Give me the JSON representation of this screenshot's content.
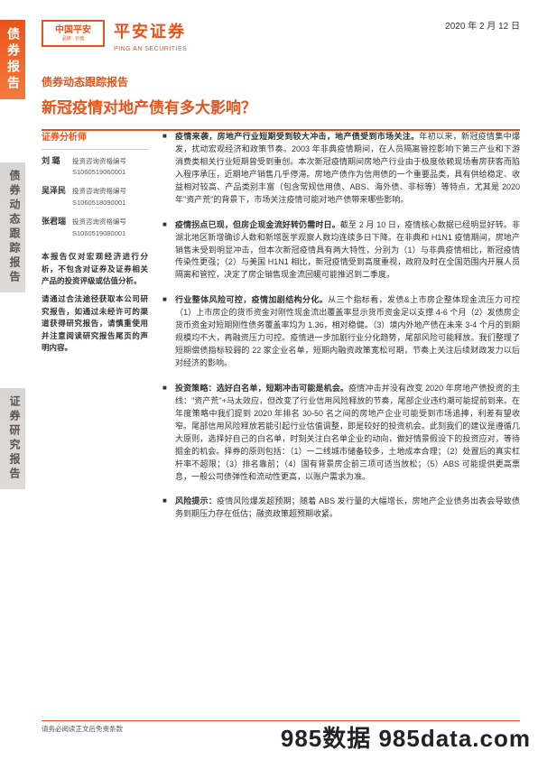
{
  "date": "2020 年 2 月 12 日",
  "header": {
    "logo_text": "中国平安",
    "logo_sub": "品牌 · 价值",
    "brand_cn": "平安证券",
    "brand_en": "PING AN SECURITIES"
  },
  "side": {
    "tab1": "债券报告",
    "tab2": "债券动态跟踪报告",
    "tab3": "证券研究报告"
  },
  "title": {
    "report_type": "债券动态跟踪报告",
    "main": "新冠疫情对地产债有多大影响？"
  },
  "analysts": {
    "heading": "证券分析师",
    "list": [
      {
        "name": "刘  璐",
        "label": "投资咨询资格编号",
        "code": "S1060519060001"
      },
      {
        "name": "吴泽民",
        "label": "投资咨询资格编号",
        "code": "S1060518090001"
      },
      {
        "name": "张君瑞",
        "label": "投资咨询资格编号",
        "code": "S1060519080001"
      }
    ],
    "note": "本报告仅对宏观经济进行分析，不包含对证券及证券相关产品的投资评级或估值分析。\n请通过合法途径获取本公司研究报告，如通过未经许可的渠道获得研究报告，请慎重使用并注意阅读研究报告尾页的声明内容。"
  },
  "bullets": [
    {
      "lead": "疫情来袭，房地产行业短期受到较大冲击，地产债受到市场关注。",
      "body": "年初以来，新冠疫情集中爆发，扰动宏观经济和政策节奏。2003 年非典疫情期间，在人员隔离管控影响下第三产业和下游消费类相关行业短期曾受到重创。本次新冠疫情期间房地产行业由于极度依赖现场看房获客而陷入程序承压，近期地产销售几乎停滞。房地产债作为信用债的一个重要品类，具有供给稳定、收益相对较高、产品类别丰富（包含常规信用债、ABS、海外债、非标等）等特点，尤其是 2020 年\"资产荒\"的背景下，市场关注疫情可能对地产债带来哪些影响。"
    },
    {
      "lead": "疫情拐点已现，但房企现金流好转仍需时日。",
      "body": "截至 2 月 10 日，疫情核心数据已经明显好转。非湖北地区新增确诊人数和新增医学观察人数均连续多日下降。在非典和 H1N1 疫情期间，房地产销售未受到明显冲击，但本次新冠疫情具有两大特性，分别为（1）与非典疫情相比，新冠疫情传染性更强；（2）与美国 H1N1 相比，新冠疫情受到高度重视，政府及时在全国范围内开展人员隔离和管控，决定了房企销售现金流回暖可能推迟到二季度。"
    },
    {
      "lead": "行业整体风险可控，疫情加剧结构分化。",
      "body": "从三个指标看，发债&上市房企整体现金流压力可控（1）上市房企的货币资金对刚性现金流出覆盖率显示货币资金足以支撑 4-6 个月（2）发债房企货币资金对短期刚性债务覆盖率均为 1.36，相对稳健。（3）境内外地产债在未来 3-4 个月的到期规模均不大，再融资压力可控。疫情进一步加剧行业分化趋势，尾部风险可能释放。我们整理了短期偿债指标较弱的 22 家企业名单，短期内融资政策宽松可期，节奏上关注后续财政发力以后对经济的影响。"
    },
    {
      "lead": "投资策略：选好白名单，短期冲击可能是机会。",
      "body": "疫情冲击并没有改变 2020 年房地产债投资的主线：\"资产荒\"+马太效应，但改变了行业信用风险释放的节奏，尾部企业违约潮可能提前到来。在年度策略中我们提到 2020 年排名 30-50 名之间的房地产企业可能受到市场追捧，利差有望收窄。尾部信用风险释放若能引起行业估值调整，即是较好的投资机会。此刻我们的建议是遵循几大原则，选择好自己的白名单，时刻关注白名单企业的动向，做好情景假设下的投资应对，等待掘金的机会。择券的原则包括：（1）一二线城市储备较多，土地成本合理；（2）处置后的真实杠杆率不超限；（3）排名靠前；（4）国有背景房企前三项可适当放松；（5）ABS 可能提供更高票息，一般公司债弹性和流动性更高，以账户需求为准。"
    },
    {
      "lead": "风险提示：",
      "body": "疫情风险爆发超预期；随着 ABS 发行量的大幅增长，房地产企业债务出表会导致债务到期压力存在低估；融资政策超预期收紧。"
    }
  ],
  "footer": "请务必阅读正文后免责条款",
  "watermark": "985数据 985data.com",
  "colors": {
    "brand": "#e8531a",
    "text": "#333333",
    "grey_tab": "#d8d6d4"
  }
}
